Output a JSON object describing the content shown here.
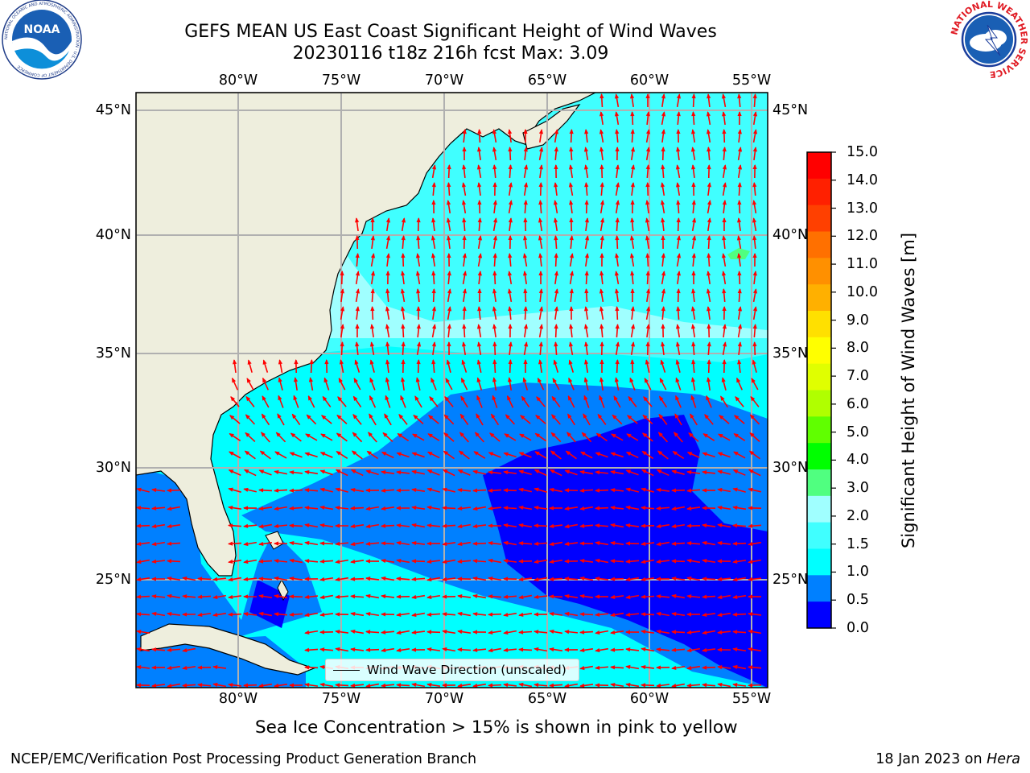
{
  "header": {
    "title_line1": "GEFS MEAN US East Coast Significant Height of Wind Waves",
    "title_line2": "20230116 t18z 216h fcst   Max: 3.09"
  },
  "logos": {
    "noaa_text": "NOAA",
    "noaa_ring": "NATIONAL OCEANIC AND ATMOSPHERIC ADMINISTRATION · U.S. DEPARTMENT OF COMMERCE",
    "nws_ring": "NATIONAL WEATHER SERVICE"
  },
  "map": {
    "lon_labels": [
      "80°W",
      "75°W",
      "70°W",
      "65°W",
      "60°W",
      "55°W"
    ],
    "lat_labels": [
      "45°N",
      "40°N",
      "35°N",
      "30°N",
      "25°N"
    ],
    "legend_label": "Wind Wave Direction (unscaled)",
    "colors": {
      "land": "#eeeedd",
      "band_0_0.5": "#0000ff",
      "band_0.5_1.0": "#0080ff",
      "band_1.0_1.5": "#00ffff",
      "band_1.5_2.0": "#40ffff",
      "band_2.0_3.0": "#a0ffff",
      "band_3.0_4.0": "#50ff80",
      "arrows": "#ff0000",
      "grid": "#b0b0b0"
    }
  },
  "colorbar": {
    "label": "Significant Height of Wind Waves [m]",
    "ticks": [
      "15.0",
      "14.0",
      "13.0",
      "12.0",
      "11.0",
      "10.0",
      "9.0",
      "8.0",
      "7.0",
      "6.0",
      "5.0",
      "4.0",
      "3.0",
      "2.0",
      "1.5",
      "1.0",
      "0.5",
      "0.0"
    ],
    "colors_top_to_bottom": [
      "#ff0000",
      "#ff2000",
      "#ff4000",
      "#ff7000",
      "#ff9000",
      "#ffb000",
      "#ffe000",
      "#ffff00",
      "#e0ff00",
      "#b0ff00",
      "#60ff00",
      "#00ff00",
      "#50ff80",
      "#a0ffff",
      "#40ffff",
      "#00ffff",
      "#0080ff",
      "#0000ff"
    ]
  },
  "notes": {
    "ice": "Sea Ice Concentration > 15% is shown in pink to yellow",
    "footer_left": "NCEP/EMC/Verification Post Processing Product Generation Branch",
    "footer_right_date": "18 Jan 2023 on ",
    "footer_right_machine": "Hera"
  }
}
